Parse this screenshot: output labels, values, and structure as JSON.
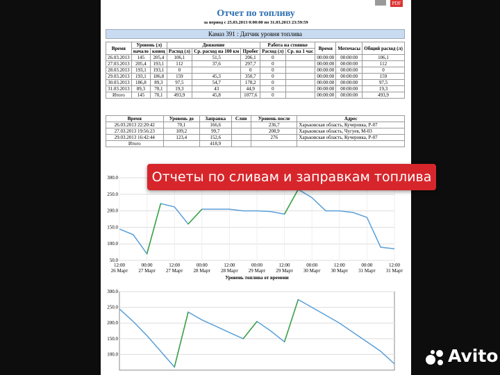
{
  "header": {
    "title": "Отчет по топливу",
    "subtitle": "за период с 25.03.2013 0:00:00 по 31.03.2013 23:59:59",
    "pdf": "PDF"
  },
  "section_title": "Камаз 391 : Датчик уровня топлива",
  "table1": {
    "header1": [
      "Время",
      "Уровень (л)",
      "Движение",
      "Работа на стоянке",
      "Время",
      "Моточасы",
      "Общий расход (л)"
    ],
    "header2": [
      "начало",
      "конец",
      "Расход (л)",
      "Ср. расход на 100 км",
      "Пробег",
      "Расход (л)",
      "Ср. на 1 час"
    ],
    "rows": [
      [
        "26.03.2013",
        "145",
        "205,4",
        "106,1",
        "51,5",
        "206,1",
        "0",
        null,
        "00:00:00",
        "00:00:00",
        "106,1"
      ],
      [
        "27.03.2013",
        "205,4",
        "193,1",
        "112",
        "37,6",
        "297,7",
        "0",
        null,
        "00:00:00",
        "00:00:00",
        "112"
      ],
      [
        "28.03.2013",
        "193,1",
        "193,1",
        "0",
        null,
        "0",
        "0",
        null,
        "00:00:00",
        "00:00:00",
        "0"
      ],
      [
        "29.03.2013",
        "193,1",
        "186,8",
        "159",
        "45,3",
        "350,7",
        "0",
        null,
        "00:00:00",
        "00:00:00",
        "159"
      ],
      [
        "30.03.2013",
        "186,8",
        "89,3",
        "97,5",
        "54,7",
        "178,2",
        "0",
        null,
        "00:00:00",
        "00:00:00",
        "97,5"
      ],
      [
        "31.03.2013",
        "89,3",
        "70,1",
        "19,3",
        "43",
        "44,9",
        "0",
        null,
        "00:00:00",
        "00:00:00",
        "19,3"
      ],
      [
        "Итого",
        "145",
        "70,1",
        "493,9",
        "45,8",
        "1077,6",
        "0",
        null,
        "00:00:00",
        "00:00:00",
        "493,9"
      ]
    ]
  },
  "table2": {
    "header": [
      "Время",
      "Уровень до",
      "Заправка",
      "Слив",
      "Уровень после",
      "Адрес"
    ],
    "rows": [
      [
        "26.03.2013 22:20:42",
        "70,1",
        "166,6",
        null,
        "236,7",
        "Харьковская область, Кучеровка, Р-07"
      ],
      [
        "27.03.2013 19:56:23",
        "109,2",
        "99,7",
        null,
        "208,9",
        "Харьковская область, Чугуев, М-03"
      ],
      [
        "29.03.2013 16:42:44",
        "123,4",
        "152,6",
        null,
        "276",
        "Харьковская область, Кучеровка, Р-07"
      ],
      [
        "Итого",
        null,
        "418,9",
        null,
        null,
        null
      ]
    ]
  },
  "banner": "Отчеты по сливам и заправкам топлива",
  "charts": [
    {
      "type": "line",
      "ylim": [
        50,
        300
      ],
      "yticks": [
        {
          "value": 50,
          "label": "50.0"
        },
        {
          "value": 100,
          "label": "100.0"
        },
        {
          "value": 150,
          "label": "150.0"
        },
        {
          "value": 200,
          "label": "200.0"
        },
        {
          "value": 250,
          "label": "250.0"
        },
        {
          "value": 300,
          "label": "300.0"
        }
      ],
      "categories": [
        [
          "12:00",
          "26 Март"
        ],
        null,
        [
          "00:00",
          "27 Март"
        ],
        null,
        [
          "12:00",
          "27 Март"
        ],
        null,
        [
          "00:00",
          "28 Март"
        ],
        null,
        [
          "12:00",
          "28 Март"
        ],
        null,
        [
          "00:00",
          "29 Март"
        ],
        null,
        [
          "12:00",
          "29 Март"
        ],
        null,
        [
          "00:00",
          "30 Март"
        ],
        null,
        [
          "12:00",
          "30 Март"
        ],
        null,
        [
          "00:00",
          "31 Март"
        ],
        null,
        [
          "12:00",
          "31 Март"
        ]
      ],
      "series": [
        {
          "color": "#5a9fd8",
          "values": [
            145,
            128,
            70,
            222,
            212,
            160,
            205,
            205,
            205,
            200,
            200,
            198,
            190,
            265,
            240,
            200,
            200,
            195,
            180,
            90,
            85
          ]
        },
        {
          "color": "#3aa33a",
          "values": [
            null,
            null,
            70,
            222,
            null,
            160,
            205,
            null,
            null,
            null,
            null,
            null,
            190,
            265,
            null,
            null,
            null,
            null,
            null,
            null,
            null
          ]
        }
      ],
      "xlabel": "Уровень топлива от времени"
    },
    {
      "type": "line",
      "ylim": [
        50,
        300
      ],
      "yticks": [
        {
          "value": 100,
          "label": "100.0"
        },
        {
          "value": 150,
          "label": "150.0"
        },
        {
          "value": 200,
          "label": "200.0"
        },
        {
          "value": 250,
          "label": "250.0"
        },
        {
          "value": 300,
          "label": "300.0"
        }
      ],
      "series": [
        {
          "color": "#5a9fd8",
          "values": [
            245,
            205,
            160,
            110,
            60,
            235,
            210,
            190,
            170,
            150,
            205,
            175,
            140,
            275,
            250,
            225,
            200,
            170,
            140,
            110,
            70
          ]
        },
        {
          "color": "#3aa33a",
          "values": [
            null,
            null,
            null,
            null,
            60,
            235,
            null,
            null,
            null,
            150,
            205,
            null,
            140,
            275,
            null,
            null,
            null,
            null,
            null,
            null,
            null
          ]
        }
      ]
    }
  ],
  "watermark": "Avito"
}
